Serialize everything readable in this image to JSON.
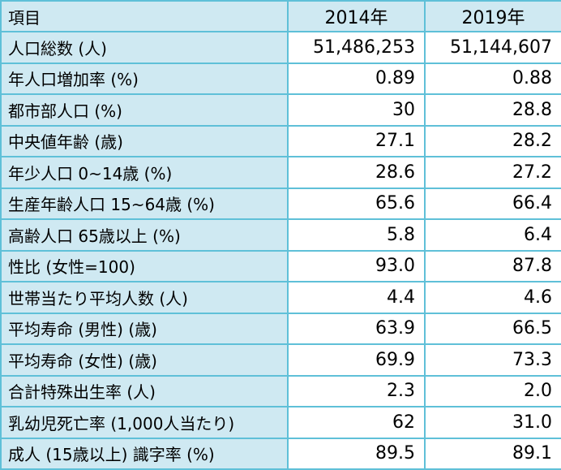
{
  "chart_data": {
    "type": "table",
    "columns": [
      "項目",
      "2014年",
      "2019年"
    ],
    "rows": [
      [
        "人口総数 (人)",
        "51,486,253",
        "51,144,607"
      ],
      [
        "年人口増加率 (%)",
        "0.89",
        "0.88"
      ],
      [
        "都市部人口 (%)",
        "30",
        "28.8"
      ],
      [
        "中央値年齢 (歳)",
        "27.1",
        "28.2"
      ],
      [
        "年少人口 0~14歳 (%)",
        "28.6",
        "27.2"
      ],
      [
        "生産年齢人口 15~64歳 (%)",
        "65.6",
        "66.4"
      ],
      [
        "高齢人口 65歳以上 (%)",
        "5.8",
        "6.4"
      ],
      [
        "性比 (女性=100)",
        "93.0",
        "87.8"
      ],
      [
        "世帯当たり平均人数 (人)",
        "4.4",
        "4.6"
      ],
      [
        "平均寿命 (男性) (歳)",
        "63.9",
        "66.5"
      ],
      [
        "平均寿命 (女性) (歳)",
        "69.9",
        "73.3"
      ],
      [
        "合計特殊出生率 (人)",
        "2.3",
        "2.0"
      ],
      [
        "乳幼児死亡率 (1,000人当たり)",
        "62",
        "31.0"
      ],
      [
        "成人 (15歳以上) 識字率 (%)",
        "89.5",
        "89.1"
      ]
    ],
    "layout": {
      "grid": "full-borders",
      "header_row": true,
      "label_column_highlighted": true
    },
    "colors": {
      "header_bg": "#cfe9f2",
      "label_bg": "#cfe9f2",
      "cell_bg": "#ffffff",
      "border": "#5fc0d8",
      "text": "#000000"
    }
  }
}
